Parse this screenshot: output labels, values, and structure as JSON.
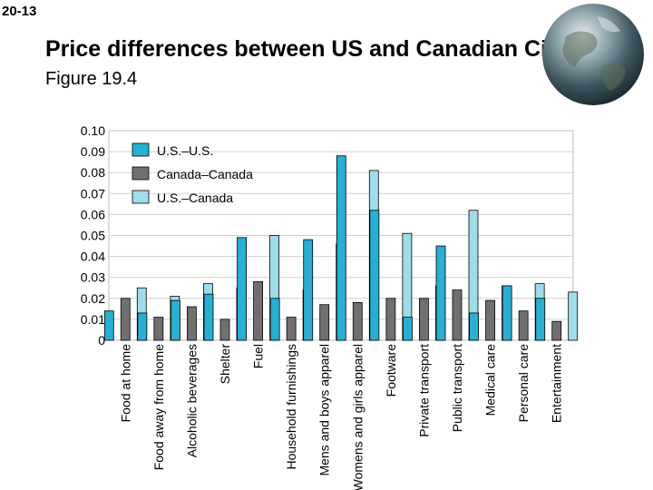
{
  "slide": {
    "number": "20-13",
    "title": "Price differences between US and Canadian Cities.",
    "subtitle": "Figure 19.4"
  },
  "chart_data": {
    "type": "bar",
    "title": "",
    "xlabel": "",
    "ylabel": "",
    "ylim": [
      0,
      0.1
    ],
    "yticks": [
      "0",
      "0.01",
      "0.02",
      "0.03",
      "0.04",
      "0.05",
      "0.06",
      "0.07",
      "0.08",
      "0.09",
      "0.10"
    ],
    "grid": true,
    "legend_position": "top-left",
    "categories": [
      "Food at home",
      "Food away from home",
      "Alcoholic beverages",
      "Shelter",
      "Fuel",
      "Household furnishings",
      "Mens and boys apparel",
      "Womens and girls apparel",
      "Footware",
      "Private transport",
      "Public transport",
      "Medical care",
      "Personal care",
      "Entertainment"
    ],
    "series": [
      {
        "name": "U.S.–U.S.",
        "color": "#2aaed2",
        "values": [
          0.014,
          0.013,
          0.019,
          0.022,
          0.049,
          0.02,
          0.048,
          0.088,
          0.062,
          0.011,
          0.045,
          0.013,
          0.026,
          0.02
        ]
      },
      {
        "name": "Canada–Canada",
        "color": "#707070",
        "values": [
          0.02,
          0.011,
          0.016,
          0.01,
          0.028,
          0.011,
          0.017,
          0.018,
          0.02,
          0.02,
          0.024,
          0.019,
          0.014,
          0.009
        ]
      },
      {
        "name": "U.S.–Canada",
        "color": "#9fdcea",
        "values": [
          0.025,
          0.021,
          0.027,
          0.025,
          0.05,
          0.024,
          0.046,
          0.081,
          0.051,
          0.026,
          0.062,
          0.026,
          0.027,
          0.023
        ]
      }
    ]
  }
}
